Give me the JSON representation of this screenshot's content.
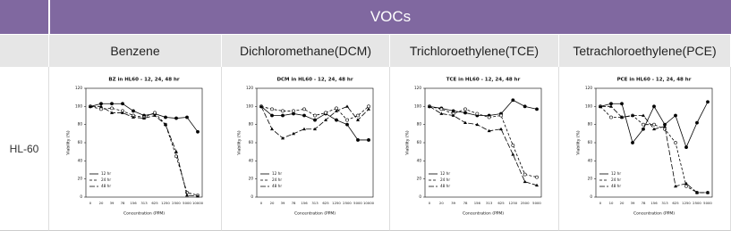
{
  "table": {
    "title": "VOCs",
    "columns": [
      "Benzene",
      "Dichloromethane(DCM)",
      "Trichloroethylene(TCE)",
      "Tetrachloroethylene(PCE)"
    ],
    "row_label": "HL-60"
  },
  "chart_data": [
    {
      "type": "line",
      "title": "BZ in HL60 - 12, 24, 48 hr",
      "x_label": "Concentration (PPM)",
      "y_label": "Viability (%)",
      "categories": [
        "0",
        "20",
        "39",
        "78",
        "156",
        "313",
        "625",
        "1250",
        "2500",
        "5000",
        "10000"
      ],
      "ylim": [
        0,
        120
      ],
      "yticks": [
        0,
        20,
        40,
        60,
        80,
        100,
        120
      ],
      "legend": "lower-left",
      "series": [
        {
          "name": "12 hr",
          "color": "#000000",
          "values": [
            100,
            103,
            103,
            103,
            95,
            90,
            92,
            88,
            87,
            88,
            72
          ]
        },
        {
          "name": "24 hr",
          "color": "#000000",
          "values": [
            100,
            97,
            98,
            95,
            90,
            88,
            93,
            80,
            45,
            5,
            2
          ]
        },
        {
          "name": "48 hr",
          "color": "#000000",
          "values": [
            100,
            100,
            93,
            93,
            88,
            87,
            90,
            80,
            50,
            2,
            1
          ]
        }
      ]
    },
    {
      "type": "line",
      "title": "DCM in HL60 - 12, 24, 48 hr",
      "x_label": "Concentration (PPM)",
      "y_label": "Viability (%)",
      "categories": [
        "0",
        "20",
        "39",
        "78",
        "156",
        "313",
        "625",
        "1250",
        "2500",
        "5000",
        "10000"
      ],
      "ylim": [
        0,
        120
      ],
      "yticks": [
        0,
        20,
        40,
        60,
        80,
        100,
        120
      ],
      "legend": "lower-left",
      "series": [
        {
          "name": "12 hr",
          "color": "#000000",
          "values": [
            100,
            90,
            90,
            92,
            90,
            85,
            92,
            85,
            80,
            63,
            63
          ]
        },
        {
          "name": "24 hr",
          "color": "#000000",
          "values": [
            100,
            97,
            95,
            95,
            97,
            90,
            93,
            98,
            85,
            90,
            100
          ]
        },
        {
          "name": "48 hr",
          "color": "#000000",
          "values": [
            100,
            75,
            65,
            70,
            75,
            75,
            85,
            95,
            100,
            85,
            97
          ]
        }
      ]
    },
    {
      "type": "line",
      "title": "TCE in HL60 - 12, 24, 48 hr",
      "x_label": "Concentration (PPM)",
      "y_label": "Viability (%)",
      "categories": [
        "0",
        "20",
        "39",
        "78",
        "156",
        "313",
        "625",
        "1250",
        "2500",
        "5000"
      ],
      "ylim": [
        0,
        120
      ],
      "yticks": [
        0,
        20,
        40,
        60,
        80,
        100,
        120
      ],
      "legend": "lower-left",
      "series": [
        {
          "name": "12 hr",
          "color": "#000000",
          "values": [
            100,
            98,
            95,
            93,
            90,
            90,
            92,
            107,
            100,
            97
          ]
        },
        {
          "name": "24 hr",
          "color": "#000000",
          "values": [
            100,
            97,
            92,
            97,
            92,
            88,
            90,
            57,
            25,
            22
          ]
        },
        {
          "name": "48 hr",
          "color": "#000000",
          "values": [
            100,
            92,
            90,
            82,
            80,
            73,
            75,
            47,
            17,
            13
          ]
        }
      ]
    },
    {
      "type": "line",
      "title": "PCE in HL60 - 12, 24, 48 hr",
      "x_label": "Concentration (PPM)",
      "y_label": "Viability (%)",
      "categories": [
        "0",
        "10",
        "20",
        "39",
        "78",
        "156",
        "313",
        "625",
        "1250",
        "2500",
        "5000"
      ],
      "ylim": [
        0,
        120
      ],
      "yticks": [
        0,
        20,
        40,
        60,
        80,
        100,
        120
      ],
      "legend": "lower-left",
      "series": [
        {
          "name": "12 hr",
          "color": "#000000",
          "values": [
            100,
            103,
            103,
            60,
            75,
            100,
            80,
            90,
            55,
            82,
            105
          ]
        },
        {
          "name": "24 hr",
          "color": "#000000",
          "values": [
            100,
            88,
            88,
            90,
            80,
            80,
            75,
            60,
            12,
            5,
            5
          ]
        },
        {
          "name": "48 hr",
          "color": "#000000",
          "values": [
            100,
            100,
            88,
            90,
            90,
            75,
            78,
            12,
            15,
            5,
            5
          ]
        }
      ]
    }
  ]
}
